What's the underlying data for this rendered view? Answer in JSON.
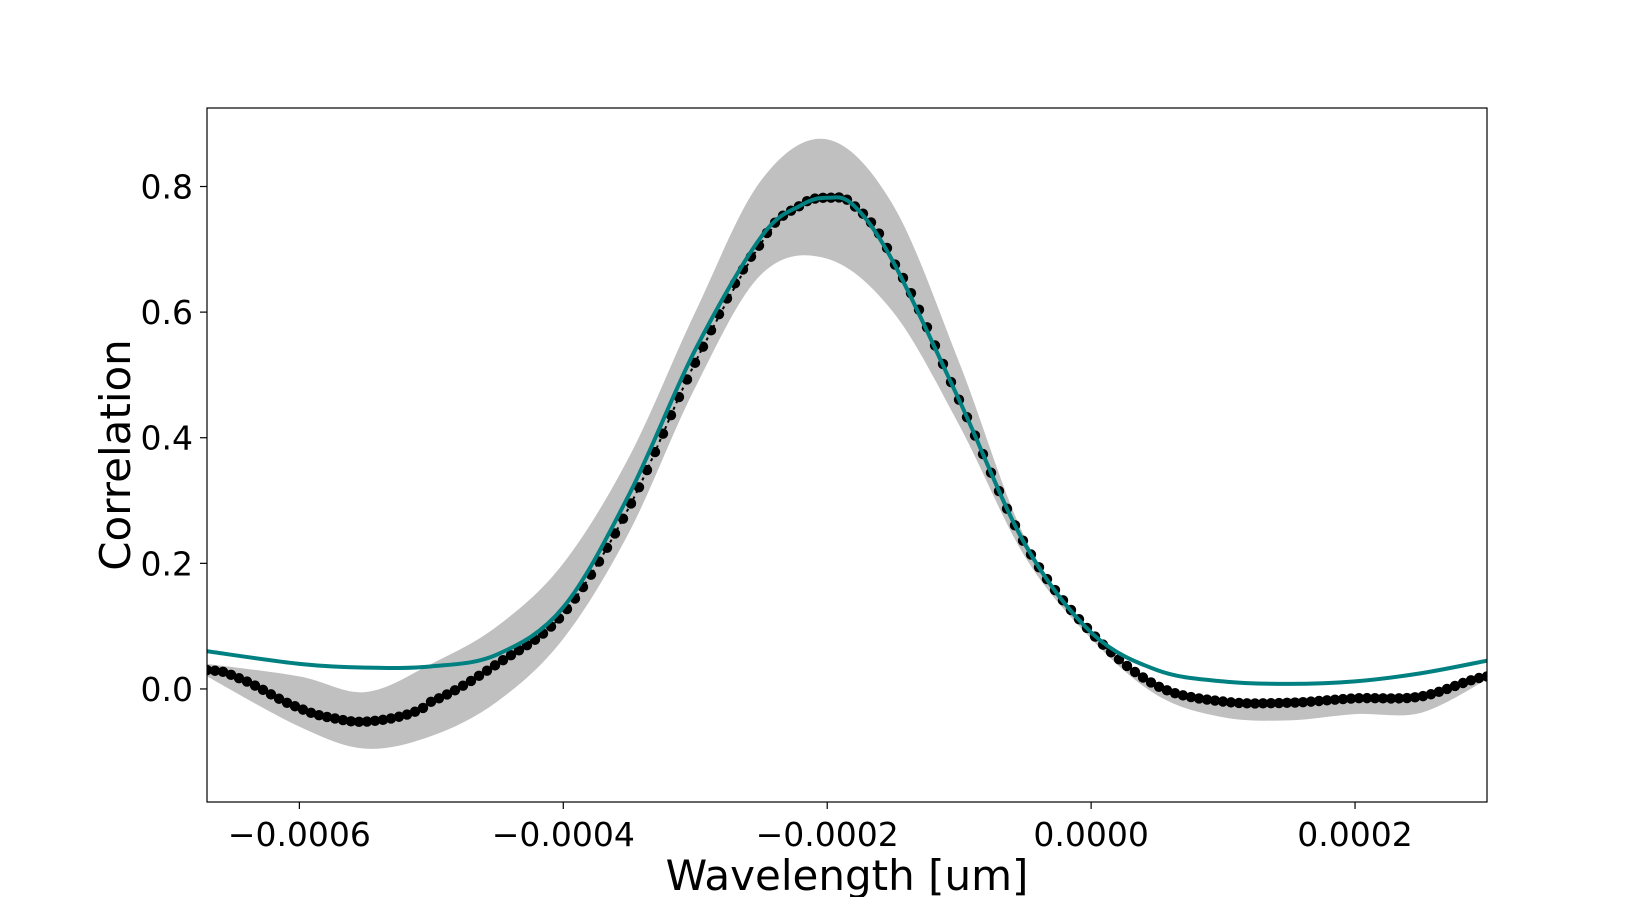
{
  "chart_data": {
    "type": "line",
    "title": "",
    "xlabel": "Wavelength [um]",
    "ylabel": "Correlation",
    "xlim": [
      -0.00067,
      0.0003
    ],
    "ylim": [
      -0.18,
      0.925
    ],
    "grid": false,
    "x_ticks": [
      -0.0006,
      -0.0004,
      -0.0002,
      0.0,
      0.0002
    ],
    "x_tick_labels": [
      "−0.0006",
      "−0.0004",
      "−0.0002",
      "0.0000",
      "0.0002"
    ],
    "y_ticks": [
      0.0,
      0.2,
      0.4,
      0.6,
      0.8
    ],
    "y_tick_labels": [
      "0.0",
      "0.2",
      "0.4",
      "0.6",
      "0.8"
    ],
    "series": [
      {
        "kind": "band",
        "color": "#c0c0c0",
        "x": [
          -0.00067,
          -0.0006,
          -0.00055,
          -0.0005,
          -0.00045,
          -0.0004,
          -0.00035,
          -0.0003,
          -0.00025,
          -0.0002,
          -0.00015,
          -0.0001,
          -5e-05,
          0.0,
          5e-05,
          0.0001,
          0.00015,
          0.0002,
          0.00025,
          0.0003
        ],
        "upper": [
          0.04,
          0.02,
          -0.005,
          0.04,
          0.1,
          0.2,
          0.37,
          0.6,
          0.81,
          0.875,
          0.77,
          0.52,
          0.24,
          0.09,
          0.01,
          -0.02,
          -0.015,
          -0.01,
          -0.005,
          0.02
        ],
        "lower": [
          0.02,
          -0.06,
          -0.095,
          -0.075,
          -0.02,
          0.08,
          0.25,
          0.48,
          0.66,
          0.685,
          0.6,
          0.42,
          0.21,
          0.08,
          -0.01,
          -0.045,
          -0.05,
          -0.04,
          -0.038,
          0.015
        ]
      },
      {
        "kind": "points",
        "color": "#000000",
        "x": [
          -0.00067,
          -0.00065,
          -0.0006,
          -0.00057,
          -0.00055,
          -0.00052,
          -0.0005,
          -0.00045,
          -0.0004,
          -0.00035,
          -0.0003,
          -0.00025,
          -0.00022,
          -0.0002,
          -0.00018,
          -0.00015,
          -0.0001,
          -5e-05,
          0.0,
          5e-05,
          0.0001,
          0.00015,
          0.0002,
          0.00025,
          0.0003
        ],
        "y": [
          0.03,
          0.02,
          -0.03,
          -0.048,
          -0.052,
          -0.042,
          -0.02,
          0.04,
          0.12,
          0.29,
          0.52,
          0.71,
          0.77,
          0.782,
          0.77,
          0.68,
          0.46,
          0.23,
          0.09,
          0.005,
          -0.02,
          -0.022,
          -0.015,
          -0.012,
          0.02
        ]
      },
      {
        "kind": "line",
        "color": "#008080",
        "x": [
          -0.00067,
          -0.0006,
          -0.00055,
          -0.0005,
          -0.00045,
          -0.0004,
          -0.00035,
          -0.0003,
          -0.00025,
          -0.00022,
          -0.0002,
          -0.00018,
          -0.00015,
          -0.0001,
          -5e-05,
          0.0,
          5e-05,
          0.0001,
          0.00015,
          0.0002,
          0.00025,
          0.0003
        ],
        "y": [
          0.06,
          0.04,
          0.034,
          0.036,
          0.055,
          0.13,
          0.31,
          0.54,
          0.72,
          0.77,
          0.782,
          0.77,
          0.68,
          0.46,
          0.23,
          0.09,
          0.03,
          0.012,
          0.008,
          0.012,
          0.025,
          0.045
        ]
      }
    ]
  }
}
